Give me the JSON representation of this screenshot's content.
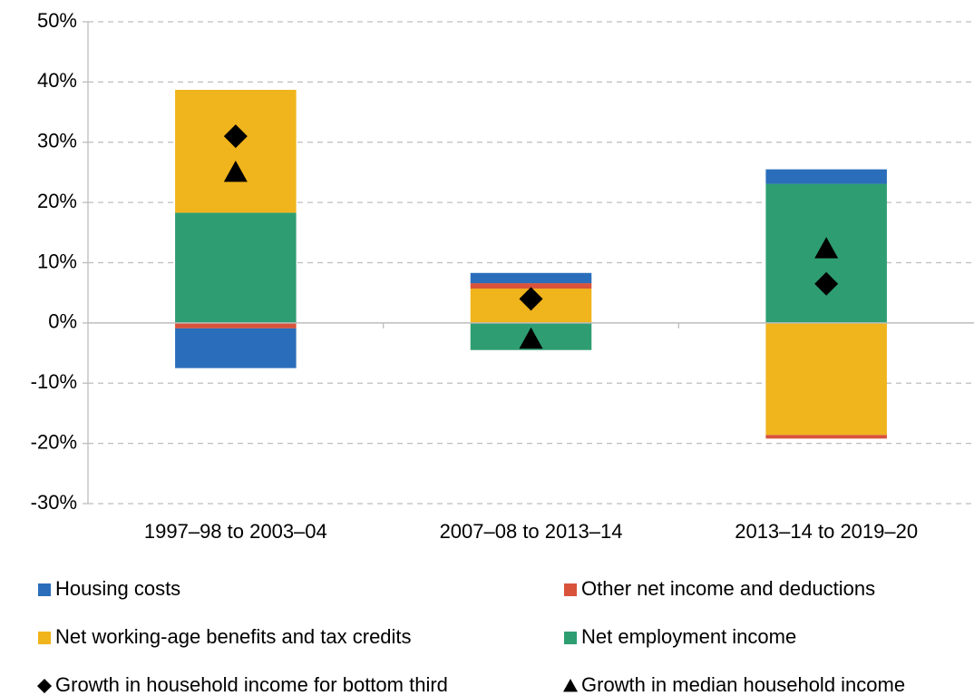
{
  "chart_data": {
    "type": "bar",
    "stacked": true,
    "grid": true,
    "categories": [
      "1997–98 to 2003–04",
      "2007–08 to 2013–14",
      "2013–14 to 2019–20"
    ],
    "ylim": [
      -30,
      50
    ],
    "yticks": [
      {
        "value": -30,
        "label": "-30%"
      },
      {
        "value": -20,
        "label": "-20%"
      },
      {
        "value": -10,
        "label": "-10%"
      },
      {
        "value": 0,
        "label": "0%"
      },
      {
        "value": 10,
        "label": "10%"
      },
      {
        "value": 20,
        "label": "20%"
      },
      {
        "value": 30,
        "label": "30%"
      },
      {
        "value": 40,
        "label": "40%"
      },
      {
        "value": 50,
        "label": "50%"
      }
    ],
    "series": [
      {
        "name": "Housing costs",
        "color": "#2a6ebb",
        "values": [
          -6.6,
          1.7,
          2.4
        ]
      },
      {
        "name": "Other net income and deductions",
        "color": "#d9533b",
        "values": [
          -0.9,
          0.9,
          -0.6
        ]
      },
      {
        "name": "Net working-age benefits and tax credits",
        "color": "#f0b41c",
        "values": [
          20.4,
          5.7,
          -18.6
        ]
      },
      {
        "name": "Net employment income",
        "color": "#2e9e72",
        "values": [
          18.3,
          -4.5,
          23.1
        ]
      }
    ],
    "points": [
      {
        "name": "Growth in household income for bottom third",
        "marker": "diamond",
        "color": "#000000",
        "values": [
          31,
          4,
          6.5
        ]
      },
      {
        "name": "Growth in median household income",
        "marker": "triangle",
        "color": "#000000",
        "values": [
          25,
          -2.7,
          12.3
        ]
      }
    ]
  }
}
